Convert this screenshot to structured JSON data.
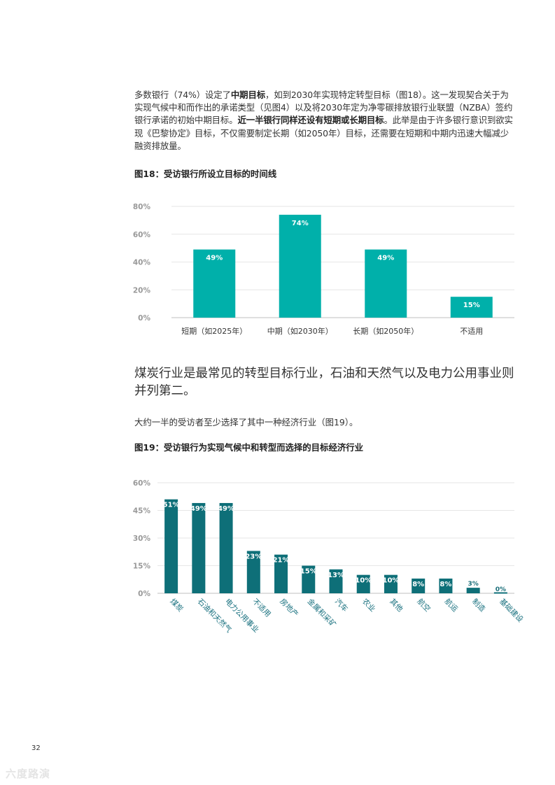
{
  "intro": {
    "s1": "多数银行（74%）设定了",
    "b1": "中期目标",
    "s2": "，如到2030年实现特定转型目标（图18）。这一发现契合关于为实现气候中和而作出的承诺类型（见图4）以及将2030年定为净零碳排放银行业联盟（NZBA）签约银行承诺的初始中期目标。",
    "b2": "近一半银行同样还设有短期或长期目标",
    "s3": "。此举是由于许多银行意识到欲实现《巴黎协定》目标，不仅需要制定长期（如2050年）目标，还需要在短期和中期内迅速大幅减少融资排放量。"
  },
  "fig18_title": "图18：受访银行所设立目标的时间线",
  "headline": "煤炭行业是最常见的转型目标行业，石油和天然气以及电力公用事业则并列第二。",
  "subpara": "大约一半的受访者至少选择了其中一种经济行业（图19）。",
  "fig19_title": "图19：受访银行为实现气候中和转型而选择的目标经济行业",
  "page_number": "32",
  "watermark": "六度路演",
  "chart_data": [
    {
      "type": "bar",
      "title": "图18：受访银行所设立目标的时间线",
      "categories": [
        "短期（如2025年）",
        "中期（如2030年）",
        "长期（如2050年）",
        "不适用"
      ],
      "values": [
        49,
        74,
        49,
        15
      ],
      "value_labels": [
        "49%",
        "74%",
        "49%",
        "15%"
      ],
      "ylim": [
        0,
        80
      ],
      "yticks": [
        0,
        20,
        40,
        60,
        80
      ],
      "ytick_labels": [
        "0%",
        "20%",
        "40%",
        "60%",
        "80%"
      ],
      "bar_color": "#00b0aa",
      "grid": true
    },
    {
      "type": "bar",
      "title": "图19：受访银行为实现气候中和转型而选择的目标经济行业",
      "categories": [
        "煤炭",
        "石油和天然气",
        "电力公用事业",
        "不适用",
        "房地产",
        "金属和采矿",
        "汽车",
        "农业",
        "其他",
        "航空",
        "航运",
        "制造",
        "基础建设"
      ],
      "values": [
        51,
        49,
        49,
        23,
        21,
        15,
        13,
        10,
        10,
        8,
        8,
        3,
        0
      ],
      "value_labels": [
        "51%",
        "49%",
        "49%",
        "23%",
        "21%",
        "15%",
        "13%",
        "10%",
        "10%",
        "8%",
        "8%",
        "3%",
        "0%"
      ],
      "ylim": [
        0,
        60
      ],
      "yticks": [
        0,
        15,
        30,
        45,
        60
      ],
      "ytick_labels": [
        "0%",
        "15%",
        "30%",
        "45%",
        "60%"
      ],
      "bar_color": "#0e6f78",
      "grid": true
    }
  ]
}
